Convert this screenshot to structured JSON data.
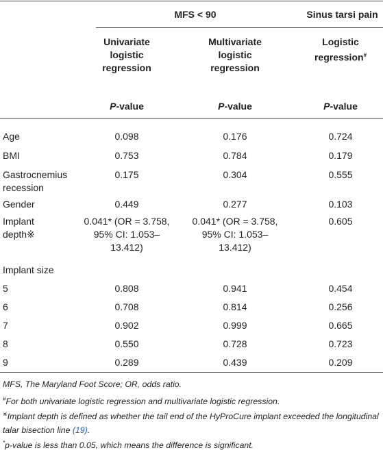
{
  "table": {
    "group_header": "MFS < 90",
    "columns": [
      {
        "name": "Univariate logistic regression",
        "stat": {
          "italic": "P",
          "rest": "-value"
        }
      },
      {
        "name": "Multivariate logistic regression",
        "stat": {
          "italic": "P",
          "rest": "-value"
        }
      },
      {
        "group": "Sinus tarsi pain",
        "name": "Logistic regression",
        "marker": "#",
        "stat": {
          "italic": "P",
          "rest": "-value"
        }
      }
    ],
    "rows": [
      [
        "Age",
        "0.098",
        "0.176",
        "0.724"
      ],
      [
        "BMI",
        "0.753",
        "0.784",
        "0.179"
      ],
      [
        "Gastrocnemius recession",
        "0.175",
        "0.304",
        "0.555"
      ],
      [
        "Gender",
        "0.449",
        "0.277",
        "0.103"
      ],
      [
        "Implant depth※",
        "0.041* (OR = 3.758, 95% CI: 1.053–13.412)",
        "0.041* (OR = 3.758, 95% CI: 1.053–13.412)",
        "0.605"
      ],
      [
        "Implant size"
      ],
      [
        "5",
        "0.808",
        "0.941",
        "0.454"
      ],
      [
        "6",
        "0.708",
        "0.814",
        "0.256"
      ],
      [
        "7",
        "0.902",
        "0.999",
        "0.665"
      ],
      [
        "8",
        "0.550",
        "0.728",
        "0.723"
      ],
      [
        "9",
        "0.289",
        "0.439",
        "0.209"
      ]
    ]
  },
  "notes": [
    {
      "text": "MFS, The Maryland Foot Score; OR, odds ratio."
    },
    {
      "marker": "#",
      "text": "For both univariate logistic regression and multivariate logistic regression."
    },
    {
      "marker": "※",
      "text": "Implant depth is defined as whether the tail end of the HyProCure implant exceeded the longitudinal talar bisection line ",
      "ref": "(19)",
      "tail": "."
    },
    {
      "marker": "*",
      "text": "p-value is less than 0.05, which means the difference is significant."
    }
  ]
}
